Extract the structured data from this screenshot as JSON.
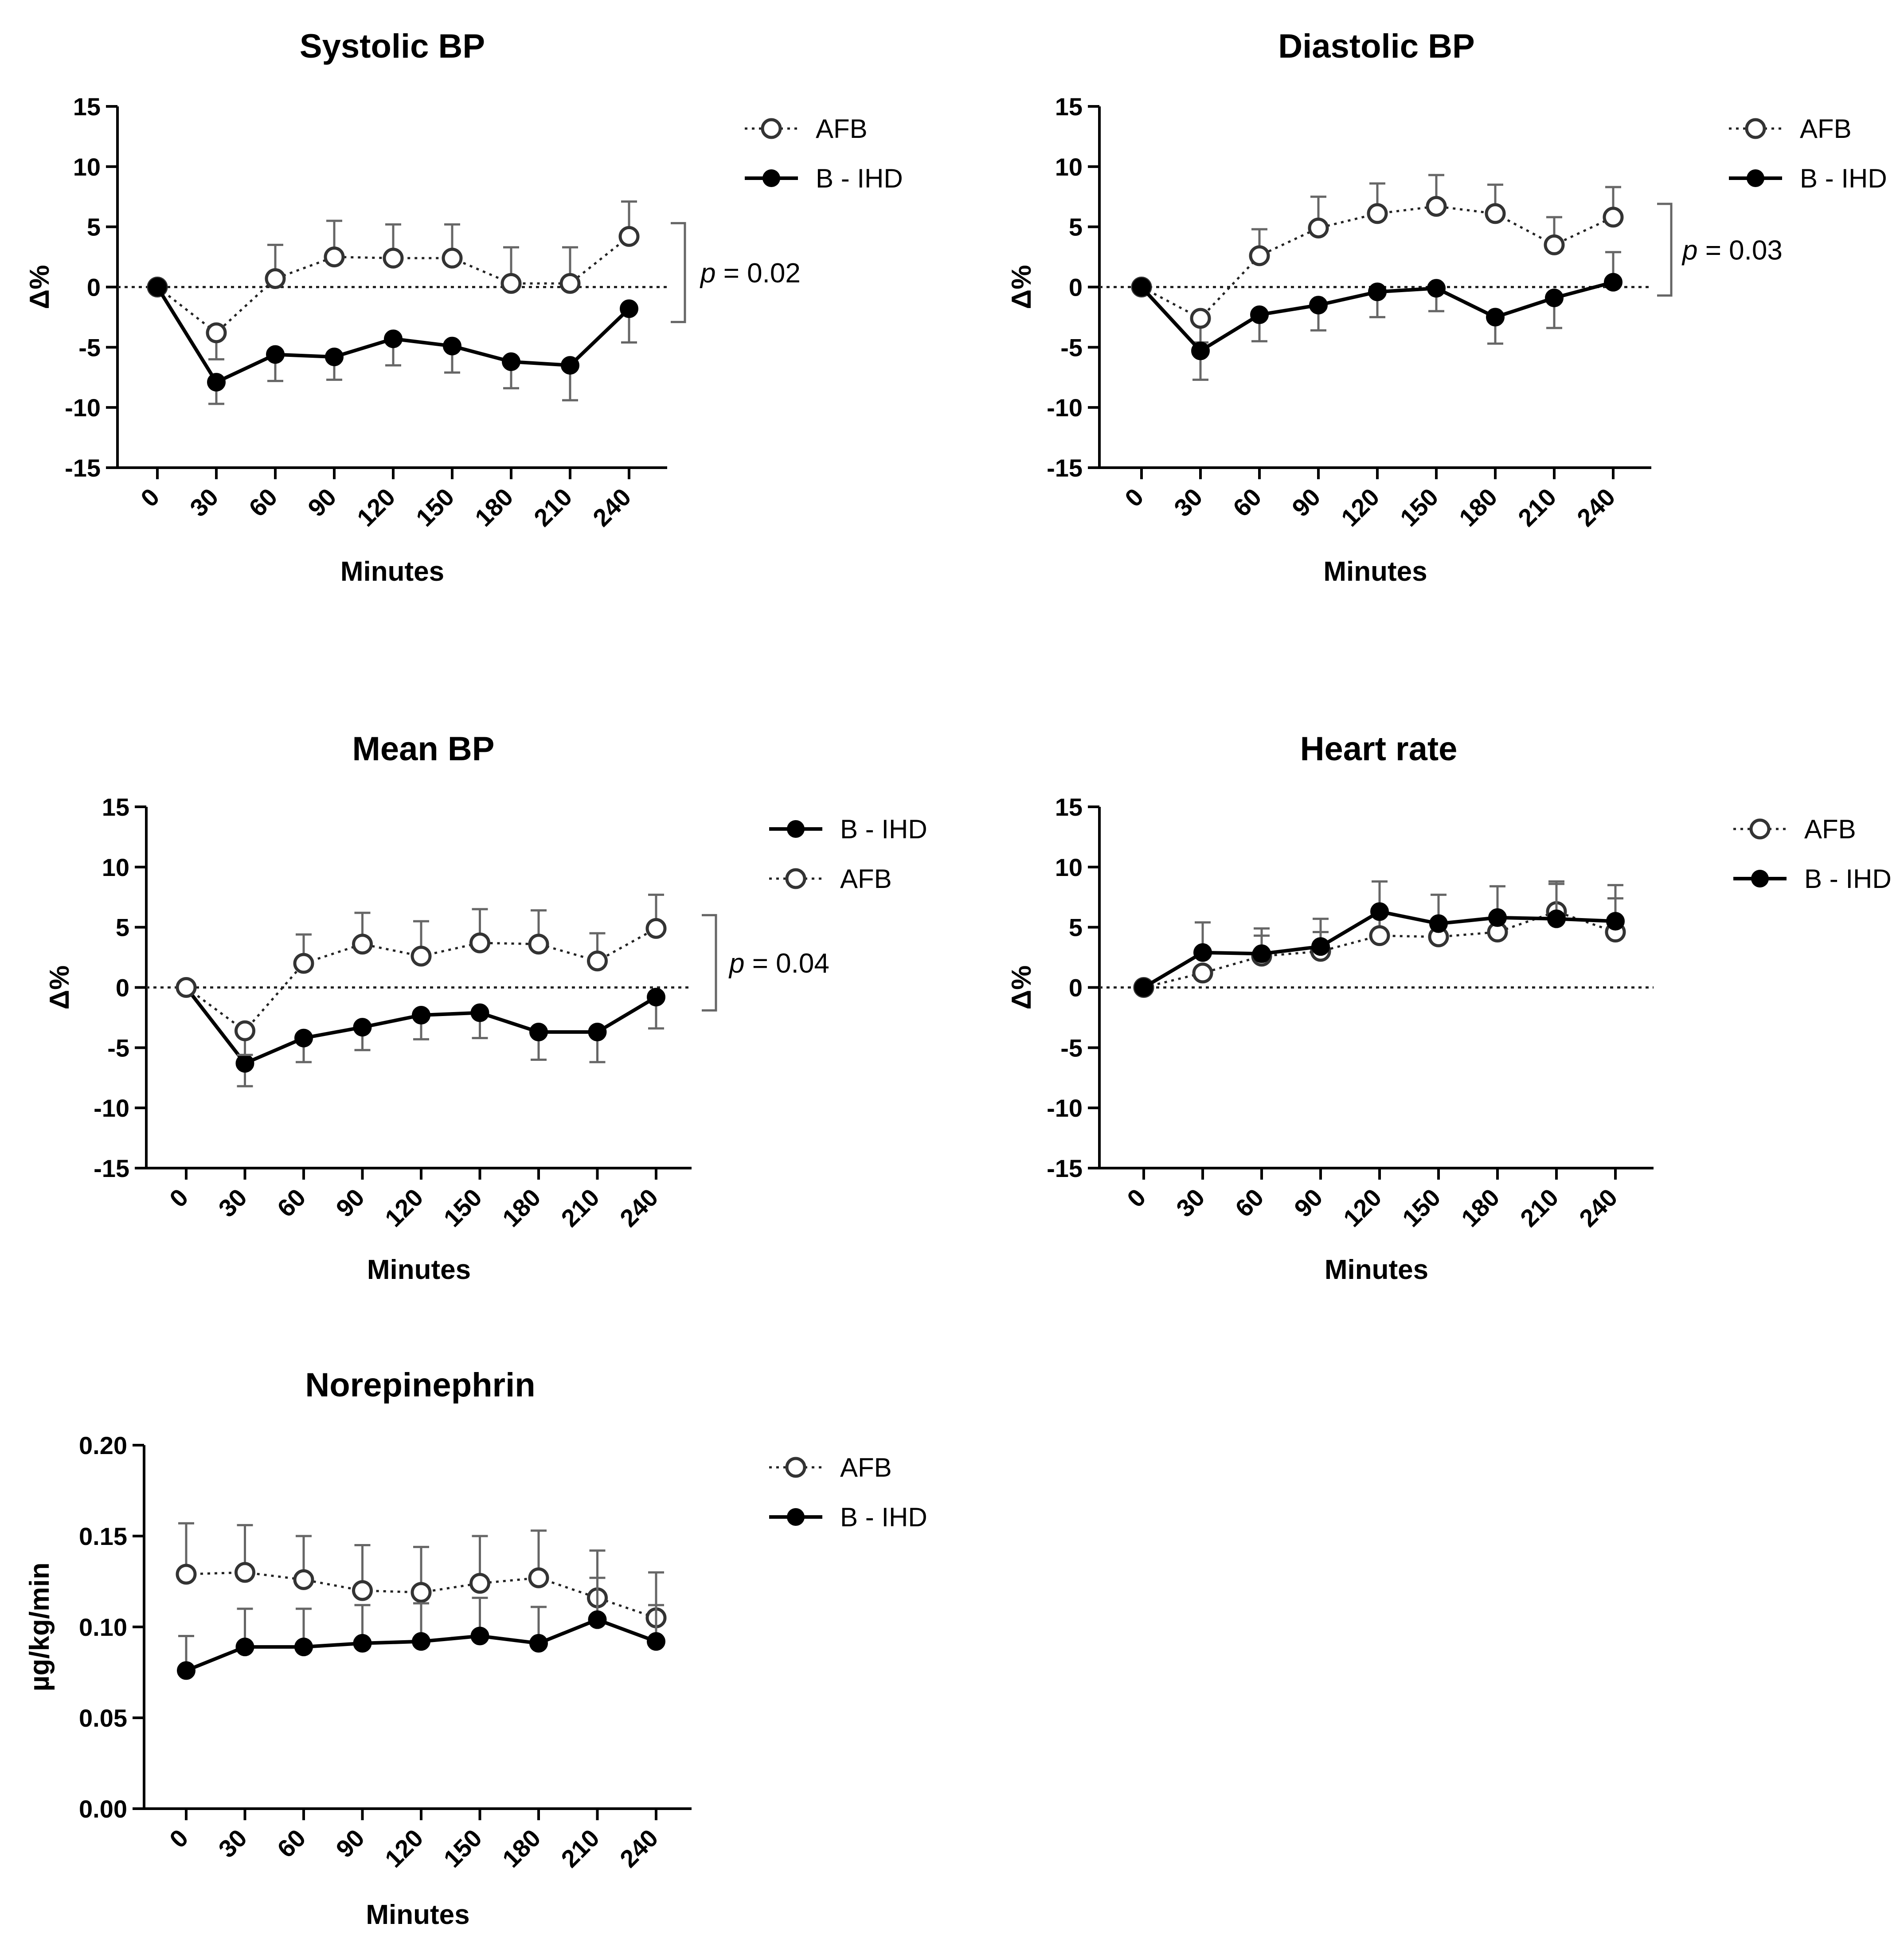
{
  "chart_data": [
    {
      "type": "line",
      "title": "Systolic BP",
      "xlabel": "Minutes",
      "ylabel": "Δ%",
      "x": [
        0,
        30,
        60,
        90,
        120,
        150,
        180,
        210,
        240
      ],
      "ylim": [
        -15,
        15
      ],
      "yticks": [
        "15",
        "10",
        "5",
        "0",
        "-5",
        "-10",
        "-15"
      ],
      "ytick_values": [
        15,
        10,
        5,
        0,
        -5,
        -10,
        -15
      ],
      "zero_line": true,
      "legend": [
        "AFB",
        "B - IHD"
      ],
      "series": [
        {
          "name": "AFB",
          "style": "open-dotted",
          "values": [
            0,
            -3.8,
            0.7,
            2.5,
            2.4,
            2.4,
            0.3,
            0.3,
            4.2
          ],
          "error": [
            0,
            2.2,
            2.8,
            3.0,
            2.8,
            2.8,
            3.0,
            3.0,
            2.9
          ]
        },
        {
          "name": "B - IHD",
          "style": "filled-solid",
          "values": [
            0,
            -7.9,
            -5.6,
            -5.8,
            -4.3,
            -4.9,
            -6.2,
            -6.5,
            -1.8
          ],
          "error": [
            0,
            1.8,
            2.2,
            1.9,
            2.2,
            2.2,
            2.2,
            2.9,
            2.8
          ]
        }
      ],
      "pvalue": {
        "p": "p",
        "text": " = 0.02"
      }
    },
    {
      "type": "line",
      "title": "Diastolic BP",
      "xlabel": "Minutes",
      "ylabel": "Δ%",
      "x": [
        0,
        30,
        60,
        90,
        120,
        150,
        180,
        210,
        240
      ],
      "ylim": [
        -15,
        15
      ],
      "yticks": [
        "15",
        "10",
        "5",
        "0",
        "-5",
        "-10",
        "-15"
      ],
      "ytick_values": [
        15,
        10,
        5,
        0,
        -5,
        -10,
        -15
      ],
      "zero_line": true,
      "legend": [
        "AFB",
        "B - IHD"
      ],
      "series": [
        {
          "name": "AFB",
          "style": "open-dotted",
          "values": [
            0,
            -2.6,
            2.6,
            4.9,
            6.1,
            6.7,
            6.1,
            3.5,
            5.8
          ],
          "error": [
            0,
            2.0,
            2.2,
            2.6,
            2.5,
            2.6,
            2.4,
            2.3,
            2.5
          ]
        },
        {
          "name": "B - IHD",
          "style": "filled-solid",
          "values": [
            0,
            -5.3,
            -2.3,
            -1.5,
            -0.4,
            -0.1,
            -2.5,
            -0.9,
            0.4
          ],
          "error": [
            0,
            2.4,
            2.2,
            2.1,
            2.1,
            1.9,
            2.2,
            2.5,
            2.5
          ]
        }
      ],
      "pvalue": {
        "p": "p",
        "text": " = 0.03"
      }
    },
    {
      "type": "line",
      "title": "Mean BP",
      "xlabel": "Minutes",
      "ylabel": "Δ%",
      "x": [
        0,
        30,
        60,
        90,
        120,
        150,
        180,
        210,
        240
      ],
      "ylim": [
        -15,
        15
      ],
      "yticks": [
        "15",
        "10",
        "5",
        "0",
        "-5",
        "-10",
        "-15"
      ],
      "ytick_values": [
        15,
        10,
        5,
        0,
        -5,
        -10,
        -15
      ],
      "zero_line": true,
      "legend": [
        "B - IHD",
        "AFB"
      ],
      "series": [
        {
          "name": "B - IHD",
          "style": "filled-solid",
          "values": [
            0,
            -6.3,
            -4.2,
            -3.3,
            -2.3,
            -2.1,
            -3.7,
            -3.7,
            -0.8
          ],
          "error": [
            0,
            1.9,
            2.0,
            1.9,
            2.0,
            2.1,
            2.3,
            2.5,
            2.6
          ]
        },
        {
          "name": "AFB",
          "style": "open-dotted",
          "values": [
            0,
            -3.6,
            2.0,
            3.6,
            2.6,
            3.7,
            3.6,
            2.2,
            4.9
          ],
          "error": [
            0,
            2.0,
            2.4,
            2.6,
            2.9,
            2.8,
            2.8,
            2.3,
            2.8
          ]
        }
      ],
      "pvalue": {
        "p": "p",
        "text": " = 0.04"
      }
    },
    {
      "type": "line",
      "title": "Heart rate",
      "xlabel": "Minutes",
      "ylabel": "Δ%",
      "x": [
        0,
        30,
        60,
        90,
        120,
        150,
        180,
        210,
        240
      ],
      "ylim": [
        -15,
        15
      ],
      "yticks": [
        "15",
        "10",
        "5",
        "0",
        "-5",
        "-10",
        "-15"
      ],
      "ytick_values": [
        15,
        10,
        5,
        0,
        -5,
        -10,
        -15
      ],
      "zero_line": true,
      "legend": [
        "AFB",
        "B - IHD"
      ],
      "series": [
        {
          "name": "AFB",
          "style": "open-dotted",
          "values": [
            0,
            1.2,
            2.6,
            3.0,
            4.3,
            4.2,
            4.6,
            6.3,
            4.6
          ],
          "error": [
            0,
            0,
            1.7,
            1.6,
            2.0,
            1.3,
            1.5,
            2.5,
            2.8
          ]
        },
        {
          "name": "B - IHD",
          "style": "filled-solid",
          "values": [
            0,
            2.9,
            2.8,
            3.4,
            6.3,
            5.3,
            5.8,
            5.7,
            5.5
          ],
          "error": [
            0,
            2.5,
            2.1,
            2.3,
            2.5,
            2.4,
            2.6,
            2.9,
            3.0
          ]
        }
      ],
      "pvalue": null
    },
    {
      "type": "line",
      "title": "Norepinephrin",
      "xlabel": "Minutes",
      "ylabel": "µg/kg/min",
      "x": [
        0,
        30,
        60,
        90,
        120,
        150,
        180,
        210,
        240
      ],
      "ylim": [
        0,
        0.2
      ],
      "yticks": [
        "0.20",
        "0.15",
        "0.10",
        "0.05",
        "0.00"
      ],
      "ytick_values": [
        0.2,
        0.15,
        0.1,
        0.05,
        0
      ],
      "zero_line": false,
      "legend": [
        "AFB",
        "B - IHD"
      ],
      "series": [
        {
          "name": "AFB",
          "style": "open-dotted",
          "values": [
            0.129,
            0.13,
            0.126,
            0.12,
            0.119,
            0.124,
            0.127,
            0.116,
            0.105
          ],
          "error": [
            0.028,
            0.026,
            0.024,
            0.025,
            0.025,
            0.026,
            0.026,
            0.026,
            0.025
          ]
        },
        {
          "name": "B - IHD",
          "style": "filled-solid",
          "values": [
            0.076,
            0.089,
            0.089,
            0.091,
            0.092,
            0.095,
            0.091,
            0.104,
            0.092
          ],
          "error": [
            0.019,
            0.021,
            0.021,
            0.021,
            0.021,
            0.021,
            0.02,
            0.023,
            0.02
          ]
        }
      ],
      "pvalue": null
    }
  ]
}
